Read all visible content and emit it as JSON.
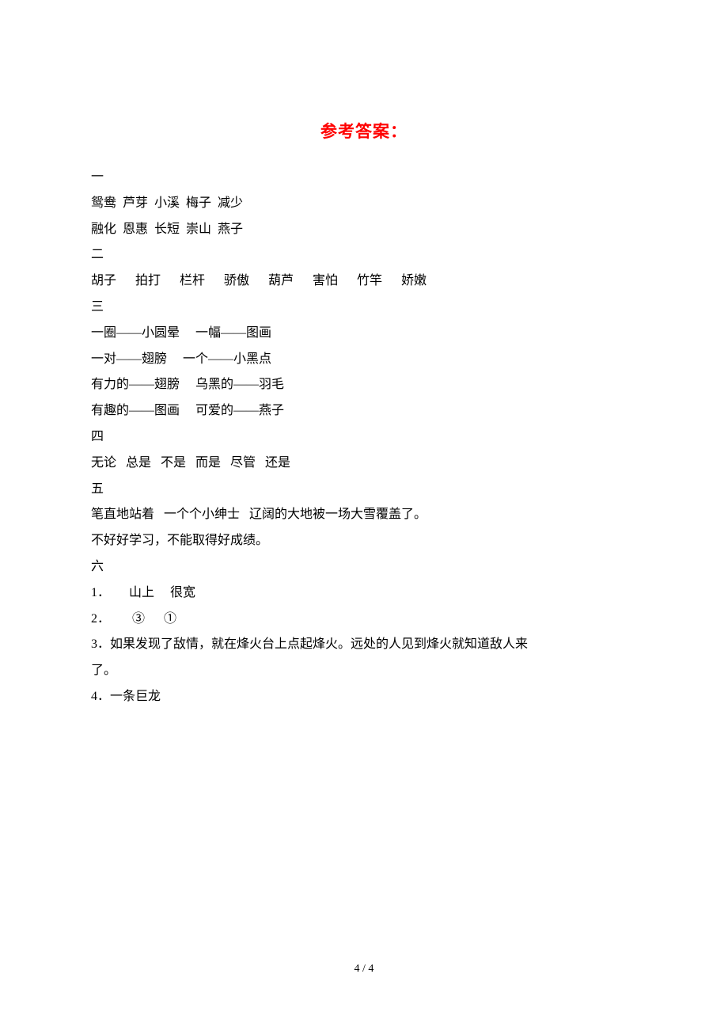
{
  "title": {
    "text": "参考答案：",
    "color": "#ff0000",
    "fontsize": 21,
    "fontweight": "bold"
  },
  "body": {
    "color": "#000000",
    "fontsize": 16,
    "background_color": "#ffffff",
    "line_height": 2.05,
    "font_family": "SimSun"
  },
  "sections": {
    "one": {
      "header": "一",
      "line1": "鸳鸯  芦芽  小溪  梅子  减少",
      "line2": "融化  恩惠  长短  崇山  燕子"
    },
    "two": {
      "header": "二",
      "line1": "胡子      拍打      栏杆      骄傲      葫芦      害怕      竹竿      娇嫩"
    },
    "three": {
      "header": "三",
      "line1": "一圈——小圆晕     一幅——图画",
      "line2": "一对——翅膀     一个——小黑点",
      "line3": "有力的——翅膀     乌黑的——羽毛",
      "line4": "有趣的——图画     可爱的——燕子"
    },
    "four": {
      "header": "四",
      "line1": "无论   总是   不是   而是   尽管   还是"
    },
    "five": {
      "header": "五",
      "line1": "笔直地站着   一个个小绅士   辽阔的大地被一场大雪覆盖了。",
      "line2": "不好好学习，不能取得好成绩。"
    },
    "six": {
      "header": "六",
      "line1": "1．      山上     很宽",
      "line2": "2．       ③      ①",
      "line3": "3．如果发现了敌情，就在烽火台上点起烽火。远处的人见到烽火就知道敌人来",
      "line4": "了。",
      "line5": "4．一条巨龙"
    }
  },
  "footer": {
    "text": "4 / 4",
    "fontsize": 14,
    "color": "#000000"
  }
}
